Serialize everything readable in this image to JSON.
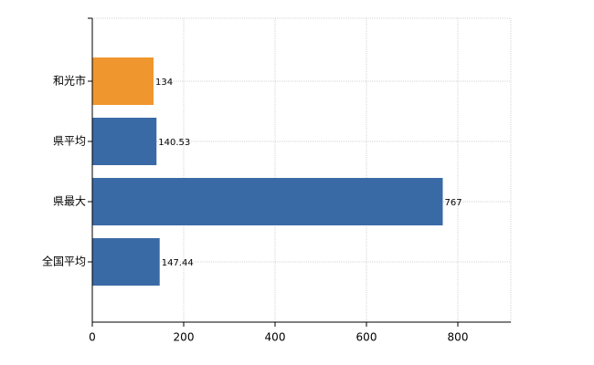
{
  "chart_data": {
    "type": "bar",
    "orientation": "horizontal",
    "categories": [
      "和光市",
      "県平均",
      "県最大",
      "全国平均"
    ],
    "values": [
      134,
      140.53,
      767,
      147.44
    ],
    "colors": [
      "#f0962e",
      "#3a6aa6",
      "#3a6aa6",
      "#3a6aa6"
    ],
    "xlim": [
      0,
      916
    ],
    "xticks": [
      0,
      200,
      400,
      600,
      800
    ],
    "grid": true
  }
}
